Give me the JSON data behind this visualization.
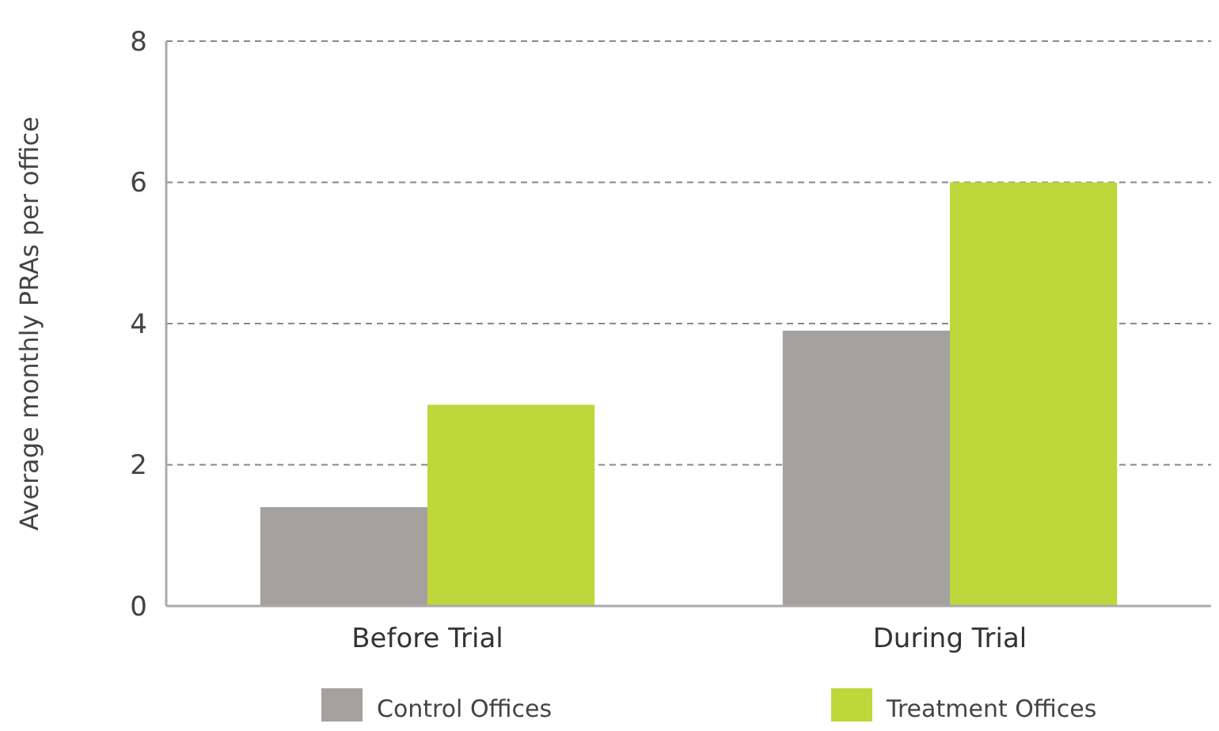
{
  "chart_data": {
    "type": "bar",
    "ylabel": "Average monthly PRAs per office",
    "categories": [
      "Before Trial",
      "During Trial"
    ],
    "series": [
      {
        "name": "Control Offices",
        "color": "#a5a19f",
        "values": [
          1.4,
          3.9
        ]
      },
      {
        "name": "Treatment Offices",
        "color": "#bed73b",
        "values": [
          2.85,
          6.0
        ]
      }
    ],
    "ylim": [
      0,
      8
    ],
    "yticks": [
      0,
      2,
      4,
      6,
      8
    ],
    "grid": "y",
    "legend": "bottom"
  }
}
